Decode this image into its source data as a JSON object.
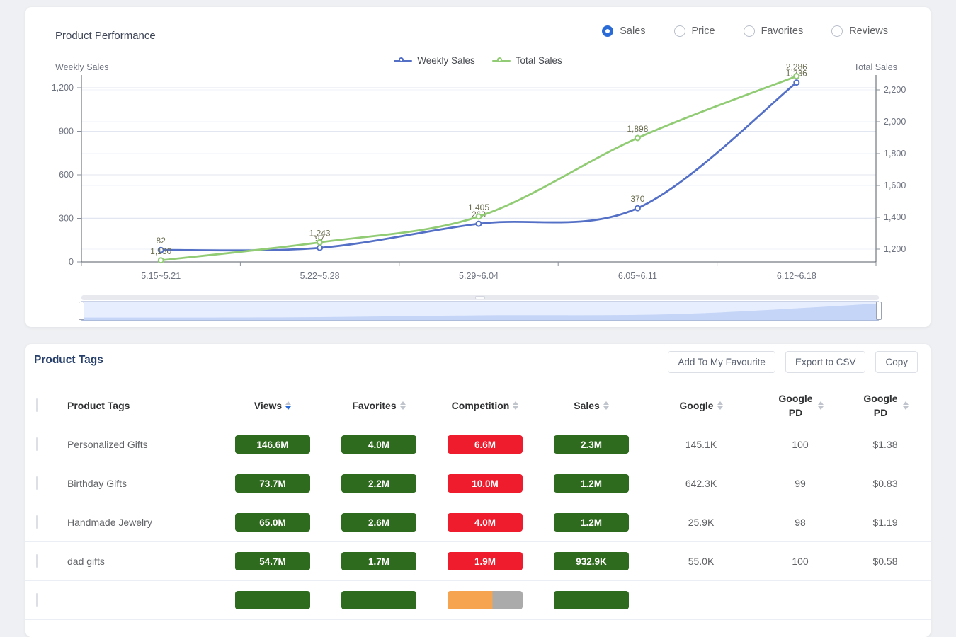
{
  "colors": {
    "accent_blue": "#2b6bd7",
    "series_weekly": "#5470c6",
    "series_total": "#91cc75",
    "badge_green": "#2e6b1e",
    "badge_red": "#ee1c2d",
    "badge_orange": "#f6a44f",
    "badge_gray": "#ababab",
    "label_olive": "#6b6d50"
  },
  "icons": {
    "radio": "radio-circle",
    "sort": "caret-up-down",
    "legend_marker": "line-with-circle",
    "datazoom_grip": "drag-grip"
  },
  "product_performance": {
    "title": "Product Performance",
    "metric_options": [
      {
        "label": "Sales",
        "selected": true
      },
      {
        "label": "Price",
        "selected": false
      },
      {
        "label": "Favorites",
        "selected": false
      },
      {
        "label": "Reviews",
        "selected": false
      }
    ],
    "legend": [
      {
        "name": "Weekly Sales",
        "color": "#5470c6"
      },
      {
        "name": "Total Sales",
        "color": "#91cc75"
      }
    ],
    "chart_data": {
      "type": "line",
      "smooth": true,
      "grid": true,
      "legend_position": "top-center",
      "categories": [
        "5.15~5.21",
        "5.22~5.28",
        "5.29~6.04",
        "6.05~6.11",
        "6.12~6.18"
      ],
      "series": [
        {
          "name": "Weekly Sales",
          "axis": "left",
          "color": "#5470c6",
          "values": [
            82,
            97,
            263,
            370,
            1236
          ],
          "labels": [
            "82",
            "97",
            "263",
            "370",
            "1,236"
          ]
        },
        {
          "name": "Total Sales",
          "axis": "right",
          "color": "#91cc75",
          "values": [
            1130,
            1243,
            1405,
            1898,
            2286
          ],
          "labels": [
            "1,130",
            "1,243",
            "1,405",
            "1,898",
            "2,286"
          ]
        }
      ],
      "left_axis": {
        "name": "Weekly Sales",
        "min": 0,
        "max": 1200,
        "ticks": [
          {
            "value": 0,
            "label": "0"
          },
          {
            "value": 300,
            "label": "300"
          },
          {
            "value": 600,
            "label": "600"
          },
          {
            "value": 900,
            "label": "900"
          },
          {
            "value": 1200,
            "label": "1,200"
          }
        ]
      },
      "right_axis": {
        "name": "Total Sales",
        "min": 1200,
        "max": 2200,
        "ticks": [
          {
            "value": 1200,
            "label": "1,200"
          },
          {
            "value": 1400,
            "label": "1,400"
          },
          {
            "value": 1600,
            "label": "1,600"
          },
          {
            "value": 1800,
            "label": "1,800"
          },
          {
            "value": 2000,
            "label": "2,000"
          },
          {
            "value": 2200,
            "label": "2,200"
          }
        ]
      }
    }
  },
  "product_tags": {
    "title": "Product Tags",
    "buttons": [
      "Add To My Favourite",
      "Export to CSV",
      "Copy"
    ],
    "columns": [
      {
        "type": "checkbox",
        "label": ""
      },
      {
        "label": "Product Tags",
        "sortable": false
      },
      {
        "label": "Views",
        "sortable": true,
        "sort": "desc"
      },
      {
        "label": "Favorites",
        "sortable": true,
        "sort": null
      },
      {
        "label": "Competition",
        "sortable": true,
        "sort": null
      },
      {
        "label": "Sales",
        "sortable": true,
        "sort": null
      },
      {
        "label": "Google",
        "sortable": true,
        "sort": null
      },
      {
        "label": "Google PD",
        "sortable": true,
        "sort": null,
        "two_line": true
      },
      {
        "label": "Google PD",
        "sortable": true,
        "sort": null,
        "two_line": true
      }
    ],
    "rows": [
      {
        "tag": "Personalized Gifts",
        "views": {
          "text": "146.6M",
          "color": "green"
        },
        "favorites": {
          "text": "4.0M",
          "color": "green"
        },
        "competition": {
          "text": "6.6M",
          "color": "red"
        },
        "sales": {
          "text": "2.3M",
          "color": "green"
        },
        "google": "145.1K",
        "google_pd": "100",
        "google_pd_price": "$1.38"
      },
      {
        "tag": "Birthday Gifts",
        "views": {
          "text": "73.7M",
          "color": "green"
        },
        "favorites": {
          "text": "2.2M",
          "color": "green"
        },
        "competition": {
          "text": "10.0M",
          "color": "red"
        },
        "sales": {
          "text": "1.2M",
          "color": "green"
        },
        "google": "642.3K",
        "google_pd": "99",
        "google_pd_price": "$0.83"
      },
      {
        "tag": "Handmade Jewelry",
        "views": {
          "text": "65.0M",
          "color": "green"
        },
        "favorites": {
          "text": "2.6M",
          "color": "green"
        },
        "competition": {
          "text": "4.0M",
          "color": "red"
        },
        "sales": {
          "text": "1.2M",
          "color": "green"
        },
        "google": "25.9K",
        "google_pd": "98",
        "google_pd_price": "$1.19"
      },
      {
        "tag": "dad gifts",
        "views": {
          "text": "54.7M",
          "color": "green"
        },
        "favorites": {
          "text": "1.7M",
          "color": "green"
        },
        "competition": {
          "text": "1.9M",
          "color": "red"
        },
        "sales": {
          "text": "932.9K",
          "color": "green"
        },
        "google": "55.0K",
        "google_pd": "100",
        "google_pd_price": "$0.58"
      },
      {
        "tag": "",
        "views": {
          "text": "",
          "color": "green"
        },
        "favorites": {
          "text": "",
          "color": "green"
        },
        "competition": {
          "text": "",
          "color": "split"
        },
        "sales": {
          "text": "",
          "color": "green"
        },
        "google": "",
        "google_pd": "",
        "google_pd_price": ""
      }
    ]
  }
}
